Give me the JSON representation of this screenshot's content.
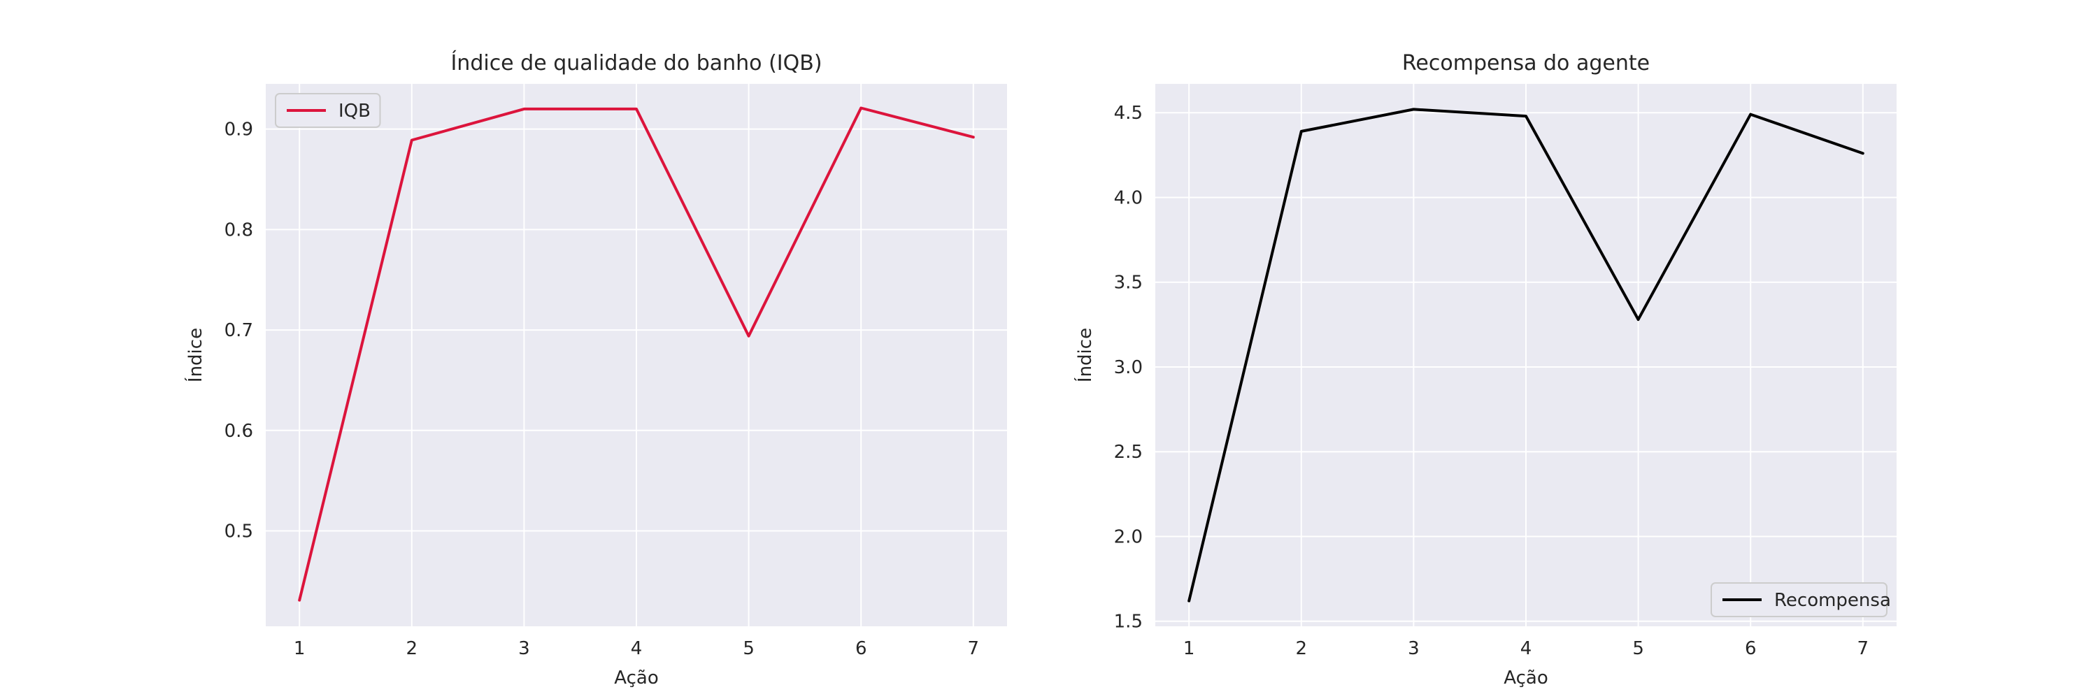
{
  "colors": {
    "plot_background": "#eaeaf2",
    "grid": "#ffffff",
    "text": "#262626",
    "legend_background": "#eaeaf2",
    "legend_border": "#cccccc"
  },
  "chart_data": [
    {
      "type": "line",
      "title": "Índice de qualidade do banho (IQB)",
      "xlabel": "Ação",
      "ylabel": "Índice",
      "x": [
        1,
        2,
        3,
        4,
        5,
        6,
        7
      ],
      "xticks": [
        "1",
        "2",
        "3",
        "4",
        "5",
        "6",
        "7"
      ],
      "xlim": [
        0.7,
        7.3
      ],
      "yticks": [
        "0.5",
        "0.6",
        "0.7",
        "0.8",
        "0.9"
      ],
      "ytick_values": [
        0.5,
        0.6,
        0.7,
        0.8,
        0.9
      ],
      "ylim": [
        0.405,
        0.945
      ],
      "grid": true,
      "legend_position": "upper-left",
      "series": [
        {
          "name": "IQB",
          "color": "#dc143c",
          "values": [
            0.431,
            0.889,
            0.92,
            0.92,
            0.694,
            0.921,
            0.892
          ]
        }
      ]
    },
    {
      "type": "line",
      "title": "Recompensa do agente",
      "xlabel": "Ação",
      "ylabel": "Índice",
      "x": [
        1,
        2,
        3,
        4,
        5,
        6,
        7
      ],
      "xticks": [
        "1",
        "2",
        "3",
        "4",
        "5",
        "6",
        "7"
      ],
      "xlim": [
        0.7,
        7.3
      ],
      "yticks": [
        "1.5",
        "2.0",
        "2.5",
        "3.0",
        "3.5",
        "4.0",
        "4.5"
      ],
      "ytick_values": [
        1.5,
        2.0,
        2.5,
        3.0,
        3.5,
        4.0,
        4.5
      ],
      "ylim": [
        1.47,
        4.67
      ],
      "grid": true,
      "legend_position": "lower-right",
      "series": [
        {
          "name": "Recompensa",
          "color": "#000000",
          "values": [
            1.62,
            4.39,
            4.52,
            4.48,
            3.28,
            4.49,
            4.26
          ]
        }
      ]
    }
  ]
}
